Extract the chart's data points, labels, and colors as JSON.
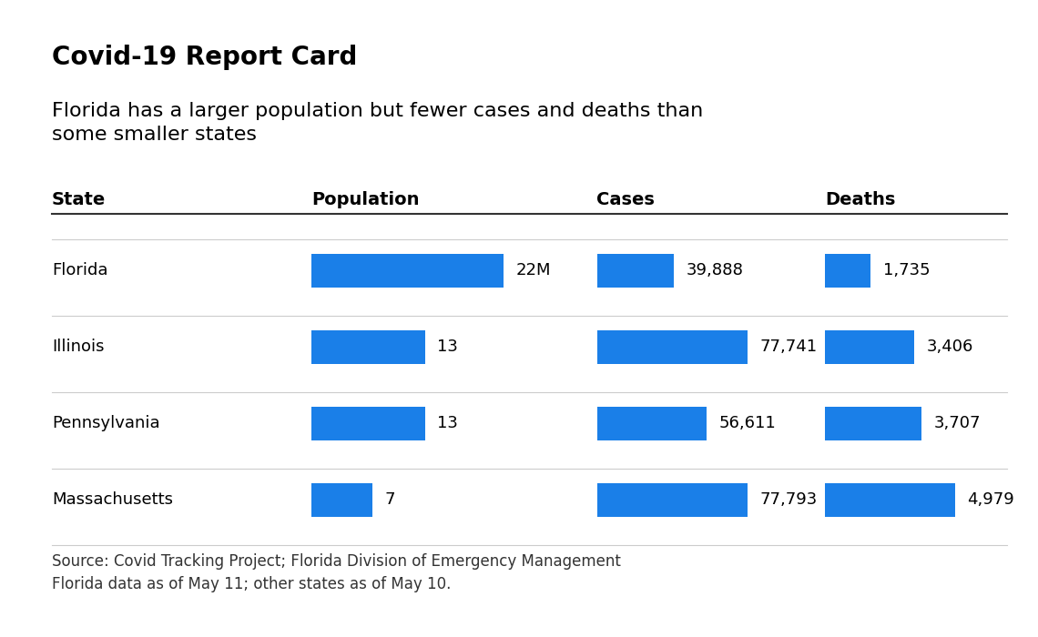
{
  "title": "Covid-19 Report Card",
  "subtitle": "Florida has a larger population but fewer cases and deaths than\nsome smaller states",
  "col_headers": [
    "State",
    "Population",
    "Cases",
    "Deaths"
  ],
  "states": [
    "Florida",
    "Illinois",
    "Pennsylvania",
    "Massachusetts"
  ],
  "population_values": [
    22,
    13,
    13,
    7
  ],
  "population_max": 22,
  "population_labels": [
    "22M",
    "13",
    "13",
    "7"
  ],
  "cases_values": [
    39888,
    77741,
    56611,
    77793
  ],
  "cases_max": 77793,
  "cases_labels": [
    "39,888",
    "77,741",
    "56,611",
    "77,793"
  ],
  "deaths_values": [
    1735,
    3406,
    3707,
    4979
  ],
  "deaths_max": 4979,
  "deaths_labels": [
    "1,735",
    "3,406",
    "3,707",
    "4,979"
  ],
  "bar_color": "#1a7fe8",
  "bg_color": "#ffffff",
  "text_color": "#000000",
  "source_text": "Source: Covid Tracking Project; Florida Division of Emergency Management\nFlorida data as of May 11; other states as of May 10.",
  "title_fontsize": 20,
  "subtitle_fontsize": 16,
  "header_fontsize": 14,
  "data_fontsize": 13,
  "source_fontsize": 12
}
